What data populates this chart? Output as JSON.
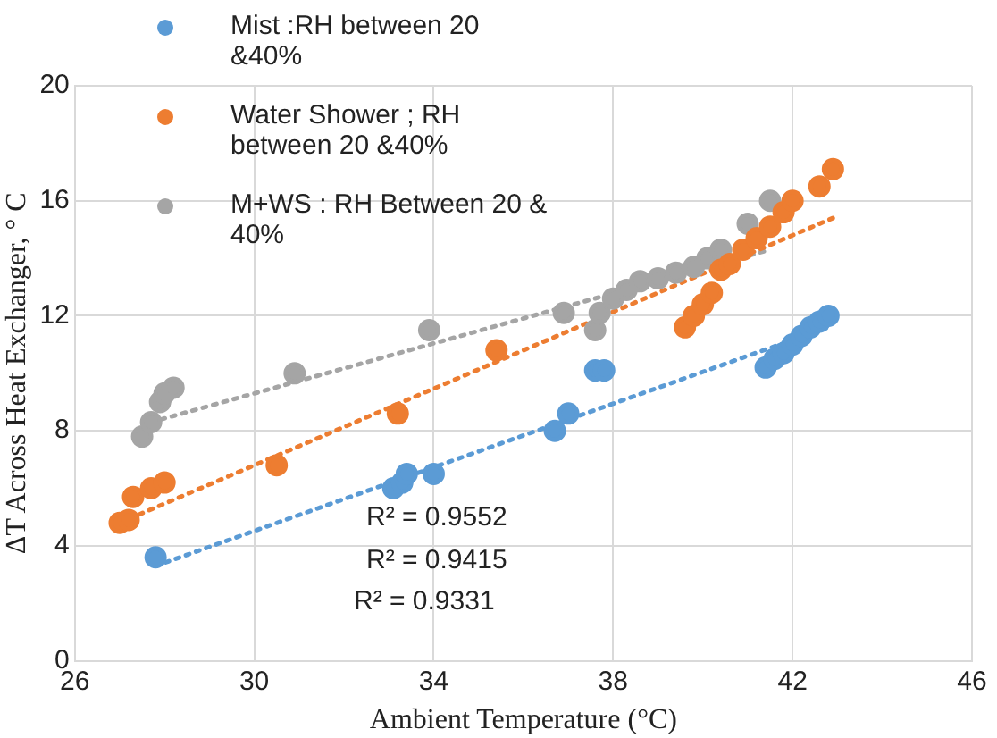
{
  "chart_data": {
    "type": "scatter",
    "xlabel": "Ambient Temperature (°C)",
    "ylabel": "ΔT Across Heat Exchanger, ° C",
    "xlim": [
      26,
      46
    ],
    "xticks": [
      26,
      30,
      34,
      38,
      42,
      46
    ],
    "ylim": [
      0,
      20
    ],
    "yticks": [
      0,
      4,
      8,
      12,
      16,
      20
    ],
    "grid": true,
    "legend": "top left",
    "marker": "circle",
    "series": [
      {
        "name": "Mist :RH between 20 &40%",
        "color": "#5b9bd5",
        "x": [
          27.8,
          33.1,
          33.3,
          33.4,
          34.0,
          36.7,
          37.0,
          37.6,
          37.8,
          41.4,
          41.6,
          41.8,
          42.0,
          42.2,
          42.4,
          42.6,
          42.8
        ],
        "values": [
          3.6,
          6.0,
          6.2,
          6.5,
          6.5,
          8.0,
          8.6,
          10.1,
          10.1,
          10.2,
          10.5,
          10.7,
          11.0,
          11.3,
          11.6,
          11.8,
          12.0
        ]
      },
      {
        "name": "Water Shower ; RH between 20 &40%",
        "color": "#ed7d31",
        "x": [
          27.0,
          27.2,
          27.3,
          27.7,
          28.0,
          30.5,
          33.2,
          35.4,
          39.6,
          39.8,
          40.0,
          40.2,
          40.4,
          40.6,
          40.9,
          41.2,
          41.5,
          41.8,
          42.0,
          42.6,
          42.9
        ],
        "values": [
          4.8,
          4.9,
          5.7,
          6.0,
          6.2,
          6.8,
          8.6,
          10.8,
          11.6,
          12.0,
          12.4,
          12.8,
          13.6,
          13.8,
          14.3,
          14.7,
          15.1,
          15.6,
          16.0,
          16.5,
          17.1
        ]
      },
      {
        "name": "M+WS : RH Between 20 & 40%",
        "color": "#a5a5a5",
        "x": [
          27.5,
          27.7,
          27.9,
          28.0,
          28.2,
          30.9,
          33.9,
          36.9,
          37.6,
          37.7,
          38.0,
          38.3,
          38.6,
          39.0,
          39.4,
          39.8,
          40.1,
          40.4,
          40.7,
          41.0,
          41.5
        ],
        "values": [
          7.8,
          8.3,
          9.0,
          9.3,
          9.5,
          10.0,
          11.5,
          12.1,
          11.5,
          12.1,
          12.6,
          12.9,
          13.2,
          13.3,
          13.5,
          13.7,
          14.0,
          14.3,
          null,
          15.2,
          16.0
        ]
      },
      {
        "type": "line",
        "color": "#5b9bd5",
        "line_style": "dotted",
        "marker": "none",
        "x": [
          27.8,
          42.8
        ],
        "values": [
          3.3,
          11.6
        ]
      },
      {
        "type": "line",
        "color": "#ed7d31",
        "line_style": "dotted",
        "marker": "none",
        "x": [
          27.0,
          42.9
        ],
        "values": [
          4.8,
          15.4
        ]
      },
      {
        "type": "line",
        "color": "#a5a5a5",
        "line_style": "dotted",
        "marker": "none",
        "x": [
          27.7,
          41.5
        ],
        "values": [
          8.3,
          14.3
        ]
      }
    ],
    "annotations": [
      "R² = 0.9552",
      "R² = 0.9415",
      "R² = 0.9331"
    ]
  }
}
